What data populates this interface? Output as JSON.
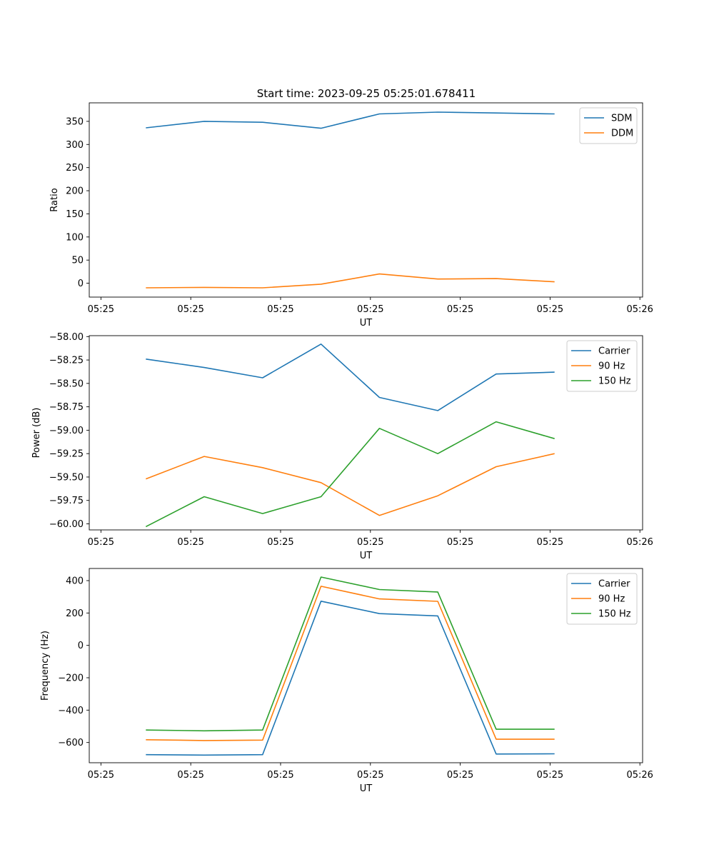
{
  "figure_title": "Start time: 2023-09-25 05:25:01.678411",
  "colors": {
    "blue": "#1f77b4",
    "orange": "#ff7f0e",
    "green": "#2ca02c"
  },
  "chart_data": [
    {
      "type": "line",
      "title": "Start time: 2023-09-25 05:25:01.678411",
      "xlabel": "UT",
      "ylabel": "Ratio",
      "xticks": [
        0,
        1,
        2,
        3,
        4,
        5,
        6
      ],
      "xtick_labels": [
        "05:25",
        "05:25",
        "05:25",
        "05:25",
        "05:25",
        "05:25",
        "05:26"
      ],
      "xlim": [
        -0.13,
        6.03
      ],
      "x": [
        0.5,
        1.15,
        1.8,
        2.45,
        3.1,
        3.75,
        4.4,
        5.05
      ],
      "ylim": [
        -30,
        390
      ],
      "yticks": [
        0,
        50,
        100,
        150,
        200,
        250,
        300,
        350
      ],
      "ytick_labels": [
        "0",
        "50",
        "100",
        "150",
        "200",
        "250",
        "300",
        "350"
      ],
      "legend_loc": "upper right",
      "series": [
        {
          "name": "SDM",
          "color": "#1f77b4",
          "values": [
            336,
            350,
            348,
            335,
            366,
            370,
            368,
            366
          ]
        },
        {
          "name": "DDM",
          "color": "#ff7f0e",
          "values": [
            -10,
            -9,
            -10,
            -2,
            20,
            9,
            10,
            3
          ]
        }
      ]
    },
    {
      "type": "line",
      "xlabel": "UT",
      "ylabel": "Power (dB)",
      "xticks": [
        0,
        1,
        2,
        3,
        4,
        5,
        6
      ],
      "xtick_labels": [
        "05:25",
        "05:25",
        "05:25",
        "05:25",
        "05:25",
        "05:25",
        "05:26"
      ],
      "xlim": [
        -0.13,
        6.03
      ],
      "x": [
        0.5,
        1.15,
        1.8,
        2.45,
        3.1,
        3.75,
        4.4,
        5.05
      ],
      "ylim": [
        -60.065,
        -57.99
      ],
      "yticks": [
        -60.0,
        -59.75,
        -59.5,
        -59.25,
        -59.0,
        -58.75,
        -58.5,
        -58.25,
        -58.0
      ],
      "ytick_labels": [
        "−60.00",
        "−59.75",
        "−59.50",
        "−59.25",
        "−59.00",
        "−58.75",
        "−58.50",
        "−58.25",
        "−58.00"
      ],
      "legend_loc": "upper right",
      "series": [
        {
          "name": "Carrier",
          "color": "#1f77b4",
          "values": [
            -58.24,
            -58.33,
            -58.44,
            -58.08,
            -58.65,
            -58.79,
            -58.4,
            -58.38
          ]
        },
        {
          "name": "90 Hz",
          "color": "#ff7f0e",
          "values": [
            -59.52,
            -59.28,
            -59.4,
            -59.56,
            -59.91,
            -59.7,
            -59.39,
            -59.25
          ]
        },
        {
          "name": "150 Hz",
          "color": "#2ca02c",
          "values": [
            -60.03,
            -59.71,
            -59.89,
            -59.71,
            -58.98,
            -59.25,
            -58.91,
            -59.09
          ]
        }
      ]
    },
    {
      "type": "line",
      "xlabel": "UT",
      "ylabel": "Frequency (Hz)",
      "xticks": [
        0,
        1,
        2,
        3,
        4,
        5,
        6
      ],
      "xtick_labels": [
        "05:25",
        "05:25",
        "05:25",
        "05:25",
        "05:25",
        "05:25",
        "05:26"
      ],
      "xlim": [
        -0.13,
        6.03
      ],
      "x": [
        0.5,
        1.15,
        1.8,
        2.45,
        3.1,
        3.75,
        4.4,
        5.05
      ],
      "ylim": [
        -725,
        475
      ],
      "yticks": [
        -600,
        -400,
        -200,
        0,
        200,
        400
      ],
      "ytick_labels": [
        "−600",
        "−400",
        "−200",
        "0",
        "200",
        "400"
      ],
      "legend_loc": "upper right",
      "series": [
        {
          "name": "Carrier",
          "color": "#1f77b4",
          "values": [
            -675,
            -678,
            -675,
            273,
            196,
            182,
            -671,
            -670
          ]
        },
        {
          "name": "90 Hz",
          "color": "#ff7f0e",
          "values": [
            -583,
            -588,
            -585,
            365,
            287,
            272,
            -580,
            -580
          ]
        },
        {
          "name": "150 Hz",
          "color": "#2ca02c",
          "values": [
            -523,
            -528,
            -523,
            422,
            345,
            330,
            -518,
            -518
          ]
        }
      ]
    }
  ]
}
